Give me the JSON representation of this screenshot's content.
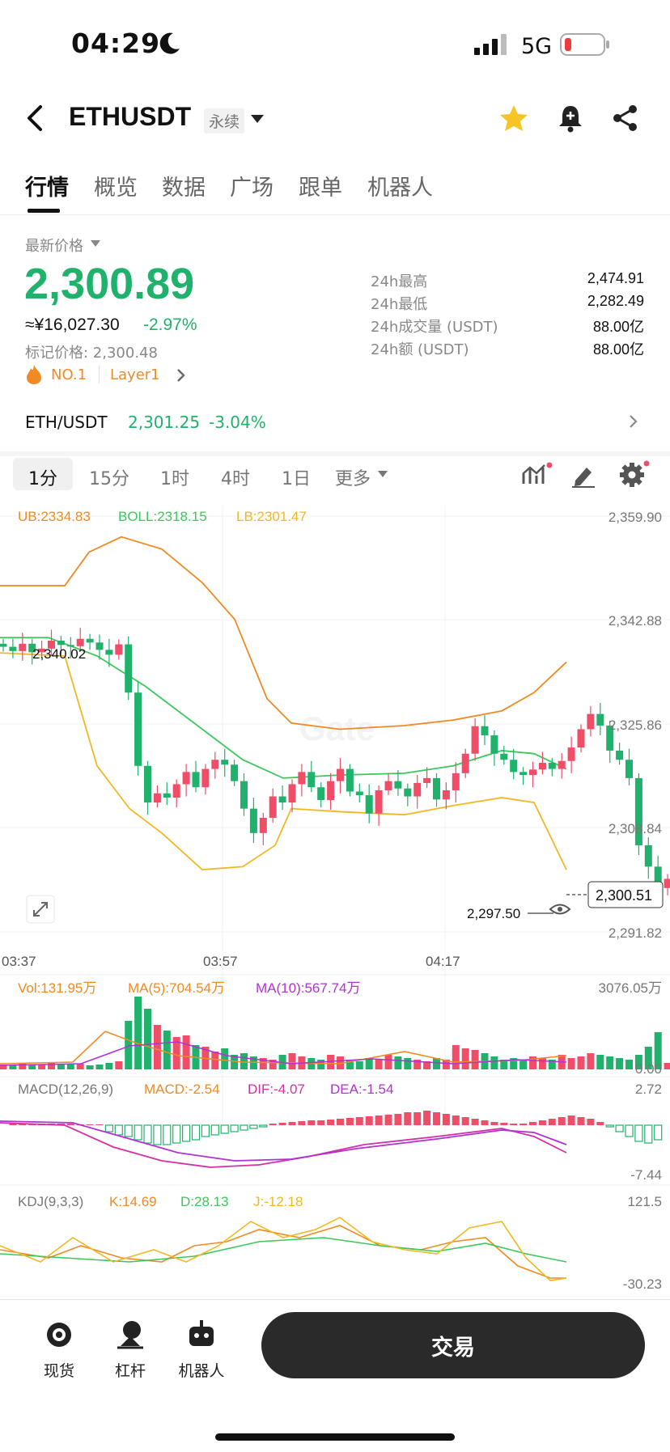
{
  "status": {
    "time": "04:29",
    "network": "5G"
  },
  "header": {
    "symbol": "ETHUSDT",
    "contract_type": "永续"
  },
  "tabs": [
    "行情",
    "概览",
    "数据",
    "广场",
    "跟单",
    "机器人"
  ],
  "ticker": {
    "last_price_label": "最新价格",
    "last_price": "2,300.89",
    "cny_price": "≈¥16,027.30",
    "change_pct": "-2.97%",
    "mark_price_text": "标记价格: 2,300.48",
    "rank": "NO.1",
    "category": "Layer1",
    "stats": [
      {
        "label": "24h最高",
        "value": "2,474.91"
      },
      {
        "label": "24h最低",
        "value": "2,282.49"
      },
      {
        "label": "24h成交量 (USDT)",
        "value": "88.00亿"
      },
      {
        "label": "24h额 (USDT)",
        "value": "88.00亿"
      }
    ]
  },
  "spot_pair": {
    "name": "ETH/USDT",
    "price": "2,301.25",
    "change": "-3.04%"
  },
  "timeframes": [
    "1分",
    "15分",
    "1时",
    "4时",
    "1日"
  ],
  "timeframe_more": "更多",
  "chart": {
    "boll": {
      "ub": "UB:2334.83",
      "boll": "BOLL:2318.15",
      "lb": "LB:2301.47"
    },
    "price_axis": [
      "2,359.90",
      "2,342.88",
      "2,325.86",
      "2,308.84",
      "2,291.82"
    ],
    "time_axis": [
      "03:37",
      "03:57",
      "04:17"
    ],
    "high_marker": "2,340.02",
    "low_marker": "2,297.50",
    "current_price_tag": "2,300.51",
    "volume": {
      "vol": "Vol:131.95万",
      "ma5": "MA(5):704.54万",
      "ma10": "MA(10):567.74万",
      "axis_top": "3076.05万",
      "axis_bottom": "0.00"
    },
    "macd": {
      "params": "MACD(12,26,9)",
      "macd": "MACD:-2.54",
      "dif": "DIF:-4.07",
      "dea": "DEA:-1.54",
      "axis_top": "2.72",
      "axis_bottom": "-7.44"
    },
    "kdj": {
      "params": "KDJ(9,3,3)",
      "k": "K:14.69",
      "d": "D:28.13",
      "j": "J:-12.18",
      "axis_top": "121.5",
      "axis_bottom": "-30.23"
    },
    "colors": {
      "up": "#20b26c",
      "down": "#ef4d68",
      "ub": "#f08a24",
      "boll": "#3cc75a",
      "lb": "#f2b824",
      "ma10": "#b231d6",
      "dea": "#b231d6",
      "dif": "#d42fa5"
    }
  },
  "bottom_nav": [
    {
      "label": "现货",
      "icon": "spot-icon"
    },
    {
      "label": "杠杆",
      "icon": "margin-icon"
    },
    {
      "label": "机器人",
      "icon": "robot-icon"
    }
  ],
  "trade_button": "交易"
}
